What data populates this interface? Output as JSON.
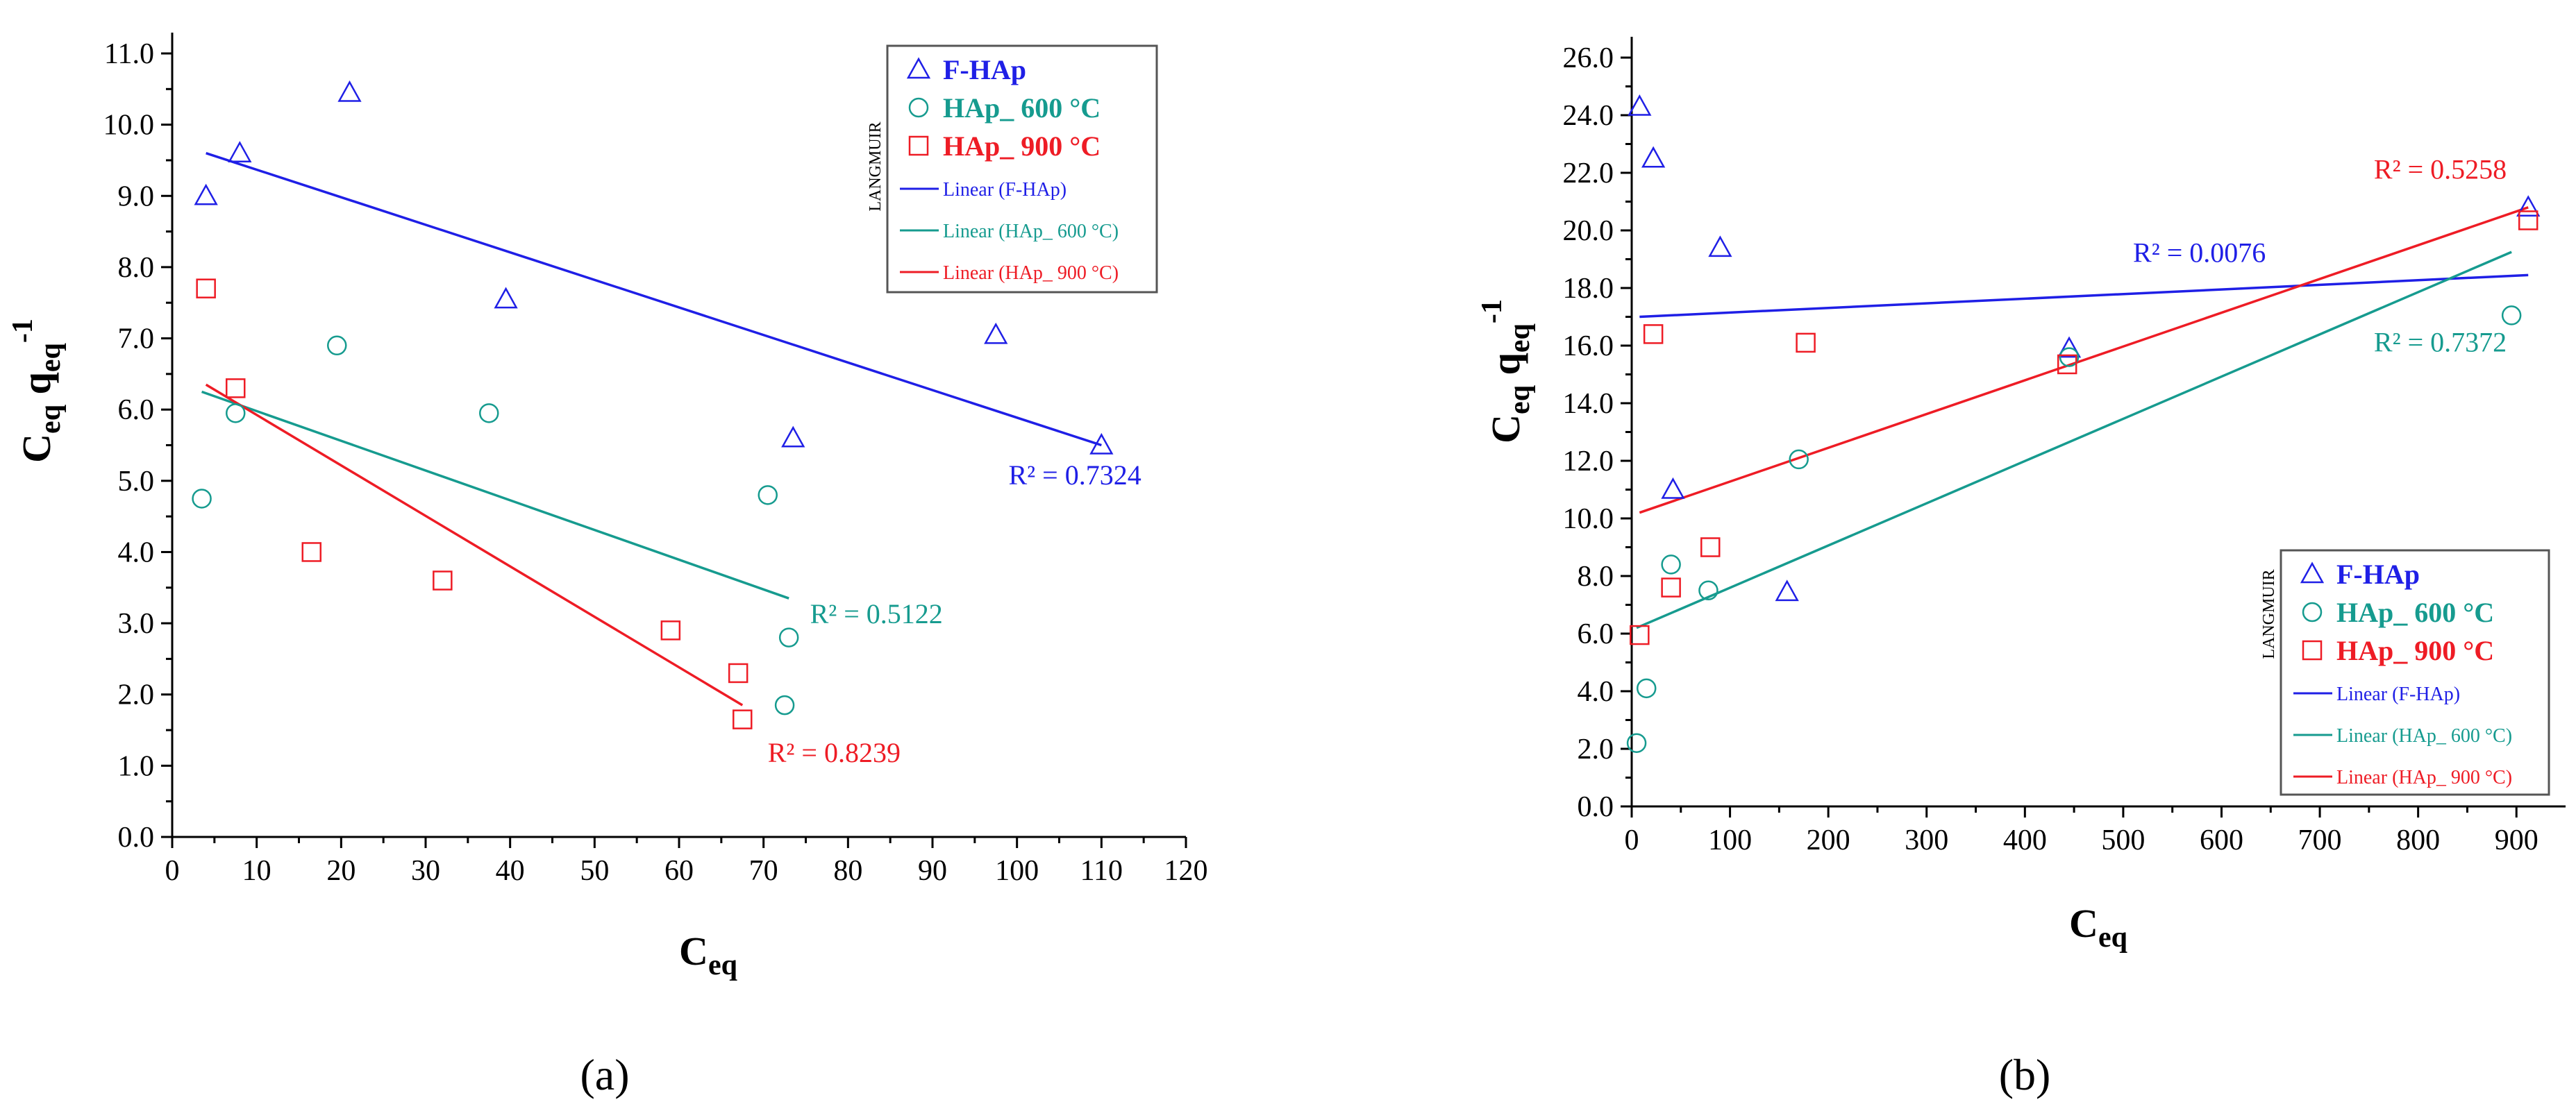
{
  "colors": {
    "blue": "#1f1fe6",
    "teal": "#169b8f",
    "red": "#ee1c25"
  },
  "chart_data": [
    {
      "type": "scatter",
      "panel_label": "(a)",
      "xlabel": "C",
      "xlabel_sub": "eq",
      "ylabel_main": "C",
      "ylabel_sub1": "eq",
      "ylabel_mid": " q",
      "ylabel_sub2": "eq",
      "ylabel_sup": "-1",
      "xlim": [
        0,
        120
      ],
      "ylim": [
        0,
        11
      ],
      "xticks": [
        0,
        10,
        20,
        30,
        40,
        50,
        60,
        70,
        80,
        90,
        100,
        110,
        120
      ],
      "xtick_labels": [
        "0",
        "10",
        "20",
        "30",
        "40",
        "50",
        "60",
        "70",
        "80",
        "90",
        "100",
        "110",
        "120"
      ],
      "yticks": [
        0,
        1,
        2,
        3,
        4,
        5,
        6,
        7,
        8,
        9,
        10,
        11
      ],
      "ytick_labels": [
        "0.0",
        "1.0",
        "2.0",
        "3.0",
        "4.0",
        "5.0",
        "6.0",
        "7.0",
        "8.0",
        "9.0",
        "10.0",
        "11.0"
      ],
      "legend_title": "LANGMUIR",
      "series": [
        {
          "name": "F-HAp",
          "marker": "triangle",
          "color": "#1f1fe6",
          "x": [
            4,
            8,
            21,
            39.5,
            73.5,
            97.5,
            110
          ],
          "y": [
            9.0,
            9.6,
            10.45,
            7.55,
            5.6,
            7.05,
            5.5
          ]
        },
        {
          "name": "HAp_ 600 °C",
          "marker": "circle",
          "color": "#169b8f",
          "x": [
            3.5,
            7.5,
            19.5,
            37.5,
            70.5,
            72.5,
            73
          ],
          "y": [
            4.75,
            5.95,
            6.9,
            5.95,
            4.8,
            1.85,
            2.8
          ]
        },
        {
          "name": "HAp_ 900 °C",
          "marker": "square",
          "color": "#ee1c25",
          "x": [
            4,
            7.5,
            16.5,
            32,
            59,
            67,
            67.5
          ],
          "y": [
            7.7,
            6.3,
            4.0,
            3.6,
            2.9,
            2.3,
            1.65
          ]
        }
      ],
      "fits": [
        {
          "name": "Linear (F-HAp)",
          "color": "#1f1fe6",
          "x": [
            4,
            110
          ],
          "y": [
            9.6,
            5.5
          ],
          "r2": "R² = 0.7324",
          "label_pos": [
            99,
            4.95
          ]
        },
        {
          "name": "Linear (HAp_ 600 °C)",
          "color": "#169b8f",
          "x": [
            3.5,
            73
          ],
          "y": [
            6.25,
            3.35
          ],
          "r2": "R² = 0.5122",
          "label_pos": [
            75.5,
            3.0
          ]
        },
        {
          "name": "Linear (HAp_ 900 °C)",
          "color": "#ee1c25",
          "x": [
            4,
            67.5
          ],
          "y": [
            6.35,
            1.85
          ],
          "r2": "R² = 0.8239",
          "label_pos": [
            70.5,
            1.05
          ]
        }
      ]
    },
    {
      "type": "scatter",
      "panel_label": "(b)",
      "xlabel": "C",
      "xlabel_sub": "eq",
      "ylabel_main": "C",
      "ylabel_sub1": "eq",
      "ylabel_mid": " q",
      "ylabel_sub2": "eq",
      "ylabel_sup": "-1",
      "xlim": [
        0,
        950
      ],
      "ylim": [
        0,
        26
      ],
      "xticks": [
        0,
        100,
        200,
        300,
        400,
        500,
        600,
        700,
        800,
        900
      ],
      "xtick_labels": [
        "0",
        "100",
        "200",
        "300",
        "400",
        "500",
        "600",
        "700",
        "800",
        "900"
      ],
      "yticks": [
        0,
        2,
        4,
        6,
        8,
        10,
        12,
        14,
        16,
        18,
        20,
        22,
        24,
        26
      ],
      "ytick_labels": [
        "0.0",
        "2.0",
        "4.0",
        "6.0",
        "8.0",
        "10.0",
        "12.0",
        "14.0",
        "16.0",
        "18.0",
        "20.0",
        "22.0",
        "24.0",
        "26.0"
      ],
      "legend_title": "LANGMUIR",
      "series": [
        {
          "name": "F-HAp",
          "marker": "triangle",
          "color": "#1f1fe6",
          "x": [
            8,
            22,
            42,
            90,
            158,
            445,
            912
          ],
          "y": [
            24.3,
            22.5,
            11.0,
            19.4,
            7.45,
            15.9,
            20.8
          ]
        },
        {
          "name": "HAp_ 600 °C",
          "marker": "circle",
          "color": "#169b8f",
          "x": [
            5,
            15,
            40,
            78,
            170,
            445,
            895
          ],
          "y": [
            2.2,
            4.1,
            8.4,
            7.5,
            12.05,
            15.6,
            17.05
          ]
        },
        {
          "name": "HAp_ 900 °C",
          "marker": "square",
          "color": "#ee1c25",
          "x": [
            8,
            22,
            40,
            80,
            177,
            443,
            912
          ],
          "y": [
            5.95,
            16.4,
            7.6,
            9.0,
            16.1,
            15.35,
            20.35
          ]
        }
      ],
      "fits": [
        {
          "name": "Linear (F-HAp)",
          "color": "#1f1fe6",
          "x": [
            8,
            912
          ],
          "y": [
            17.0,
            18.45
          ],
          "r2": "R² = 0.0076",
          "label_pos": [
            510,
            18.9
          ]
        },
        {
          "name": "Linear (HAp_ 600 °C)",
          "color": "#169b8f",
          "x": [
            5,
            895
          ],
          "y": [
            6.2,
            19.25
          ],
          "r2": "R² = 0.7372",
          "label_pos": [
            755,
            15.8
          ]
        },
        {
          "name": "Linear (HAp_ 900 °C)",
          "color": "#ee1c25",
          "x": [
            8,
            912
          ],
          "y": [
            10.2,
            20.8
          ],
          "r2": "R² = 0.5258",
          "label_pos": [
            755,
            21.8
          ]
        }
      ]
    }
  ]
}
